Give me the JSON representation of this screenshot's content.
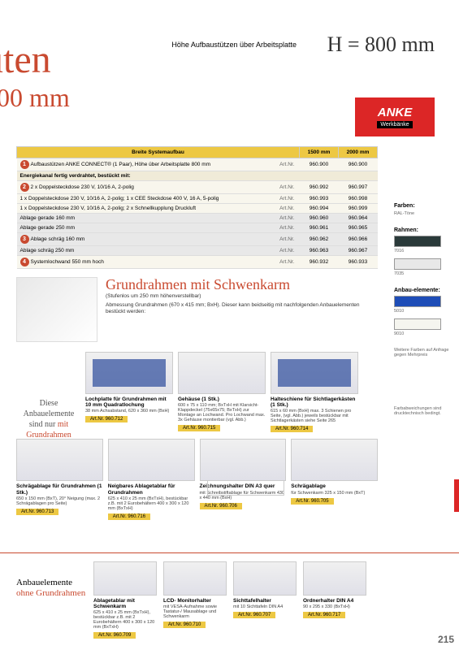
{
  "header": {
    "title_line1": "uten",
    "title_line2": "000 mm",
    "hoehe_label": "Höhe Aufbaustützen\nüber Arbeitsplatte",
    "h_value": "H = 800 mm",
    "logo_brand": "ANKE",
    "logo_sub": "Werkbänke"
  },
  "table": {
    "head_wide": "Breite Systemaufbau",
    "head_col1": "1500 mm",
    "head_col2": "2000 mm",
    "rows": [
      {
        "circle": "1",
        "text": "Aufbaustützen ANKE CONNECT® (1 Paar), Höhe über Arbeitsplatte 800 mm",
        "art": "Art.Nr.",
        "v1": "960.900",
        "v2": "960.900",
        "grey": false
      },
      {
        "subhead": true,
        "text": "Energiekanal fertig verdrahtet, bestückt mit:"
      },
      {
        "circle": "2",
        "text": "2 x Doppelsteckdose 230 V, 10/16 A, 2-polig",
        "art": "Art.Nr.",
        "v1": "960.992",
        "v2": "960.997",
        "grey": false
      },
      {
        "text": "1 x Doppelsteckdose 230 V, 10/16 A, 2-polig; 1 x CEE Steckdose 400 V, 16 A, 5-polig",
        "art": "Art.Nr.",
        "v1": "960.993",
        "v2": "960.998",
        "grey": false
      },
      {
        "text": "1 x Doppelsteckdose 230 V, 10/16 A, 2-polig; 2 x Schnellkupplung Druckluft",
        "art": "Art.Nr.",
        "v1": "960.994",
        "v2": "960.999",
        "grey": false
      },
      {
        "text": "Ablage gerade 160 mm",
        "art": "Art.Nr.",
        "v1": "960.960",
        "v2": "960.964",
        "grey": true
      },
      {
        "text": "Ablage gerade 250 mm",
        "art": "Art.Nr.",
        "v1": "960.961",
        "v2": "960.965",
        "grey": true
      },
      {
        "circle": "3",
        "text": "Ablage schräg 160 mm",
        "art": "Art.Nr.",
        "v1": "960.962",
        "v2": "960.966",
        "grey": true
      },
      {
        "text": "Ablage schräg 250 mm",
        "art": "Art.Nr.",
        "v1": "960.963",
        "v2": "960.967",
        "grey": true
      },
      {
        "circle": "4",
        "text": "Systemlochwand 550 mm hoch",
        "art": "Art.Nr.",
        "v1": "960.932",
        "v2": "960.933",
        "grey": false
      }
    ]
  },
  "grundrahmen": {
    "title": "Grundrahmen mit Schwenkarm",
    "sub": "(Stufenlos um 250 mm höhenverstellbar)",
    "desc": "Abmessung Grundrahmen (670 x 415 mm; BxH).\nDieser kann beidseitig mit nachfolgenden Anbauelementen bestückt werden:",
    "swarm_art": "Art.Nr. 960.711"
  },
  "side_note": {
    "l1": "Diese",
    "l2": "Anbauelemente",
    "l3": "sind nur",
    "l3b": "mit",
    "l4": "Grundrahmen",
    "l5": "möglich!"
  },
  "products_r1": [
    {
      "title": "Lochplatte für Grundrahmen mit 10 mm Quadratlochung",
      "desc": "38 mm Achsabstand, 620 x 360 mm (BxH)",
      "art": "Art.Nr. 960.712",
      "blue": true
    },
    {
      "title": "Gehäuse (1 Stk.)",
      "desc": "600 x 75 x 110 mm; BxTxH mit Klarsicht-Klappdeckel (75x65x75; BxTxH) zur Montage an Lochwand. Pro Lochwand max. 3x Gehäuse montierbar (vgl. Abb.)",
      "art": "Art.Nr. 960.715"
    },
    {
      "title": "Halteschiene für Sichtlagerkästen (1 Stk.)",
      "desc": "615 x 60 mm (BxH) max. 3 Schienen pro Seite, (vgl. Abb.) jeweils bestückbar mit Sichtlagerkästen siehe Seite 265",
      "art": "Art.Nr. 960.714",
      "blue": true
    }
  ],
  "products_r2": [
    {
      "title": "Schrägablage für Grundrahmen (1 Stk.)",
      "desc": "650 x 150 mm (BxT), 20° Neigung (max. 2 Schrägablagen pro Seite)",
      "art": "Art.Nr. 960.713"
    },
    {
      "title": "Neigbares Ablagetablar für Grundrahmen",
      "desc": "625 x 410 x 25 mm (BxTxH), bestückbar z.B. mit 2 Eurobehältern 400 x 300 x 120 mm (BxTxH)",
      "art": "Art.Nr. 960.716"
    },
    {
      "title": "Zeichnungshalter DIN A3 quer",
      "desc": "mit Schreibstiftablage für Schwenkarm 430 x 440 mm (BxH)",
      "art": "Art.Nr. 960.706"
    },
    {
      "title": "Schrägablage",
      "desc": "für Schwenkarm 325 x 150 mm (BxT)",
      "art": "Art.Nr. 960.705"
    }
  ],
  "sidebar": {
    "farben_label": "Farben:",
    "farben_sub": "RAL-Töne",
    "rahmen_label": "Rahmen:",
    "swatches_rahmen": [
      {
        "color": "#2a3a3a",
        "label": "7016"
      },
      {
        "color": "#e8e8e8",
        "label": "7035"
      }
    ],
    "anbau_label": "Anbau-elemente:",
    "swatches_anbau": [
      {
        "color": "#1e4db7",
        "label": "5010"
      },
      {
        "color": "#f5f5ef",
        "label": "9010"
      }
    ],
    "note1": "Weitere Farben auf Anfrage gegen Mehrpreis",
    "note2": "Farbabweichungen sind drucktechnisch bedingt."
  },
  "footer": {
    "l1": "Anbauelemente",
    "l2": "ohne Grundrahmen",
    "products": [
      {
        "title": "Ablagetablar mit Schwenkarm",
        "desc": "625 x 410 x 25 mm (BxTxH), bestückbar z.B. mit 2 Eurobehältern 400 x 300 x 120 mm (BxTxH)",
        "art": "Art.Nr. 960.709"
      },
      {
        "title": "LCD- Monitorhalter",
        "desc": "mit VESA-Aufnahme sowie Tastatur-/ Mausablage und Schwenkarm",
        "art": "Art.Nr. 960.710"
      },
      {
        "title": "Sichttafelhalter",
        "desc": "mit 10 Sichttafeln DIN A4",
        "art": "Art.Nr. 960.707"
      },
      {
        "title": "Ordnerhalter DIN A4",
        "desc": "90 x 295 x 330 (BxTxH)",
        "art": "Art.Nr. 960.717"
      }
    ],
    "page": "215"
  }
}
